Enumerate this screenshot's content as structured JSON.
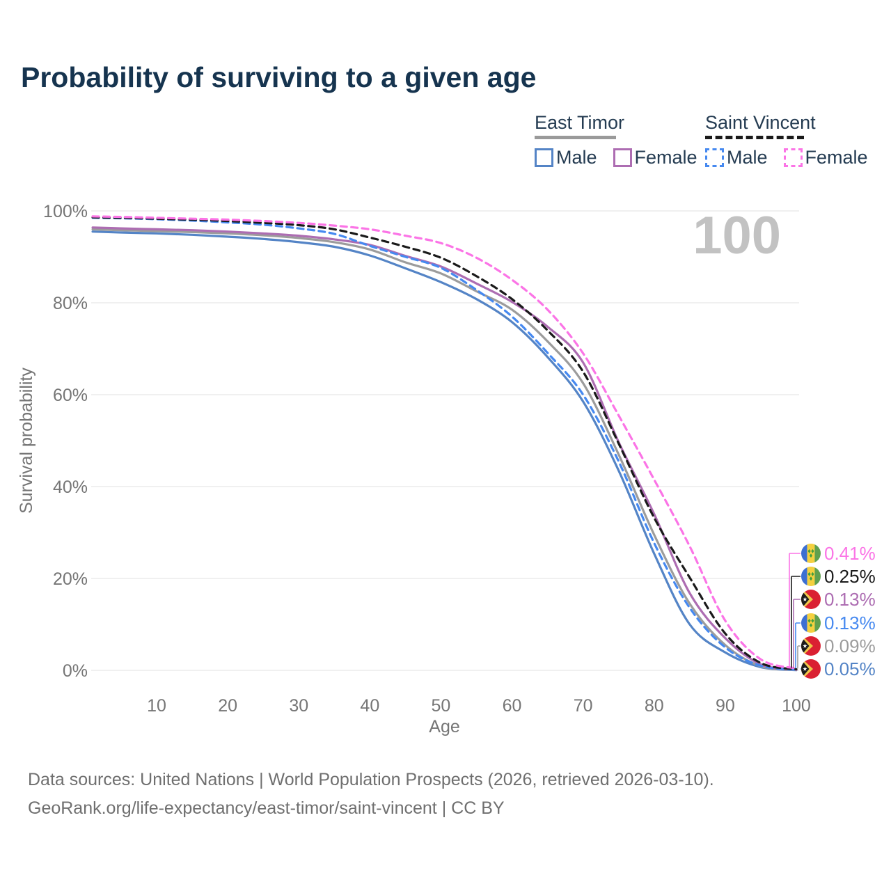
{
  "title": "Probability of surviving to a given age",
  "legend": {
    "groups": [
      {
        "title": "East Timor",
        "line_style": "solid",
        "underline_color": "#9a9a9a",
        "items": [
          {
            "label": "Male",
            "color": "#5484c6",
            "style": "solid"
          },
          {
            "label": "Female",
            "color": "#ad6db2",
            "style": "solid"
          }
        ]
      },
      {
        "title": "Saint Vincent",
        "line_style": "dashed",
        "underline_color": "#1a1a1a",
        "items": [
          {
            "label": "Male",
            "color": "#4689f0",
            "style": "dashed"
          },
          {
            "label": "Female",
            "color": "#fb74e6",
            "style": "dashed"
          }
        ]
      }
    ]
  },
  "chart_data": {
    "type": "line",
    "title": "Probability of surviving to a given age",
    "xlabel": "Age",
    "ylabel": "Survival probability",
    "watermark": "100",
    "grid": "horizontal",
    "xlim": [
      1,
      100
    ],
    "ylim": [
      0,
      100
    ],
    "x_ticks": [
      10,
      20,
      30,
      40,
      50,
      60,
      70,
      80,
      90,
      100
    ],
    "y_ticks": [
      {
        "value": 0,
        "label": "0%"
      },
      {
        "value": 20,
        "label": "20%"
      },
      {
        "value": 40,
        "label": "40%"
      },
      {
        "value": 60,
        "label": "60%"
      },
      {
        "value": 80,
        "label": "80%"
      },
      {
        "value": 100,
        "label": "100%"
      }
    ],
    "ages": [
      1,
      5,
      10,
      15,
      20,
      25,
      30,
      35,
      40,
      45,
      50,
      55,
      60,
      65,
      70,
      75,
      80,
      85,
      90,
      95,
      100
    ],
    "unit": "percent survival probability",
    "series": [
      {
        "name": "Saint Vincent — Female",
        "country": "saint-vincent",
        "sex": "Female",
        "style": "dashed",
        "color": "#fb74e6",
        "end_label": "0.41%",
        "values": [
          98.8,
          98.7,
          98.5,
          98.3,
          98.1,
          97.8,
          97.4,
          96.8,
          96.0,
          94.6,
          93.0,
          89.8,
          85.0,
          78.5,
          69.0,
          55.5,
          41.5,
          27.0,
          10.8,
          2.4,
          0.41
        ]
      },
      {
        "name": "Saint Vincent — Both sexes",
        "country": "saint-vincent",
        "sex": "Both",
        "style": "dashed",
        "color": "#1a1a1a",
        "end_label": "0.25%",
        "values": [
          98.6,
          98.5,
          98.3,
          98.1,
          97.8,
          97.4,
          96.9,
          96.0,
          94.2,
          92.2,
          89.8,
          85.8,
          80.8,
          74.0,
          65.0,
          49.4,
          33.2,
          20.2,
          8.0,
          1.6,
          0.25
        ]
      },
      {
        "name": "East Timor — Female",
        "country": "east-timor",
        "sex": "Female",
        "style": "solid",
        "color": "#ad6db2",
        "end_label": "0.13%",
        "values": [
          96.4,
          96.2,
          96.0,
          95.8,
          95.5,
          95.1,
          94.6,
          93.8,
          92.6,
          90.2,
          87.9,
          84.2,
          80.2,
          74.8,
          67.0,
          49.7,
          34.0,
          16.8,
          7.0,
          1.3,
          0.13
        ]
      },
      {
        "name": "Saint Vincent — Male",
        "country": "saint-vincent",
        "sex": "Male",
        "style": "dashed",
        "color": "#4689f0",
        "end_label": "0.13%",
        "values": [
          98.5,
          98.4,
          98.2,
          97.9,
          97.5,
          97.0,
          96.2,
          95.0,
          92.4,
          90.0,
          87.6,
          82.8,
          77.0,
          69.1,
          60.0,
          45.5,
          27.7,
          13.6,
          5.0,
          1.0,
          0.13
        ]
      },
      {
        "name": "East Timor — Both sexes",
        "country": "east-timor",
        "sex": "Both",
        "style": "solid",
        "color": "#9c9c9c",
        "end_label": "0.09%",
        "values": [
          96.0,
          95.8,
          95.6,
          95.4,
          95.1,
          94.7,
          94.1,
          93.2,
          91.6,
          88.8,
          86.4,
          82.5,
          78.5,
          71.6,
          62.5,
          47.0,
          29.5,
          14.5,
          5.5,
          0.9,
          0.09
        ]
      },
      {
        "name": "East Timor — Male",
        "country": "east-timor",
        "sex": "Male",
        "style": "solid",
        "color": "#5484c6",
        "end_label": "0.05%",
        "values": [
          95.5,
          95.3,
          95.1,
          94.8,
          94.4,
          93.9,
          93.2,
          92.2,
          90.3,
          87.5,
          84.5,
          80.8,
          75.8,
          68.2,
          58.5,
          43.5,
          25.4,
          10.0,
          3.9,
          0.7,
          0.05
        ]
      }
    ]
  },
  "footer": {
    "line1": "Data sources: United Nations | World Population Prospects (2026, retrieved 2026-03-10).",
    "line2": "GeoRank.org/life-expectancy/east-timor/saint-vincent | CC BY"
  }
}
